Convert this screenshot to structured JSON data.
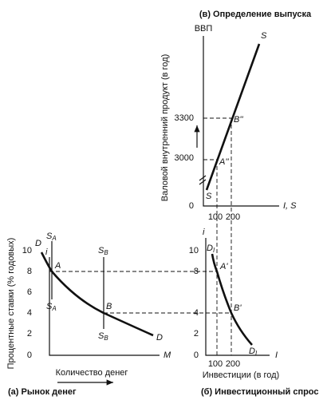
{
  "output_panel": {
    "caption": "(в) Определение выпуска",
    "y_title": "ВВП",
    "y_axis_label": "Валовой внутренний продукт (в год)",
    "x_title": "I, S",
    "yticks": [
      "3300",
      "3000",
      "0"
    ],
    "xticks": [
      "100",
      "200"
    ],
    "curve_labels": [
      "S",
      "S"
    ],
    "points": [
      {
        "main": "A",
        "sup": "''"
      },
      {
        "main": "B",
        "sup": "''"
      }
    ]
  },
  "money_panel": {
    "caption": "(а) Рынок денег",
    "y_title": "i",
    "y_axis_label": "Процентные ставки (% годовых)",
    "x_title": "M",
    "x_axis_label": "Количество денег",
    "yticks": [
      "10",
      "8",
      "6",
      "4",
      "2",
      "0"
    ],
    "supply_labels": [
      {
        "main": "S",
        "sub": "A"
      },
      {
        "main": "S",
        "sub": "A"
      },
      {
        "main": "S",
        "sub": "B"
      },
      {
        "main": "S",
        "sub": "B"
      }
    ],
    "curve_labels": [
      "D",
      "D"
    ],
    "points": [
      "A",
      "B"
    ]
  },
  "investment_panel": {
    "caption": "(б) Инвестиционный спрос",
    "y_title": "i",
    "x_title": "I",
    "x_axis_label": "Инвестиции (в год)",
    "yticks": [
      "10",
      "8",
      "4",
      "2",
      "0"
    ],
    "xticks": [
      "100",
      "200"
    ],
    "curve_labels": [
      {
        "main": "D",
        "sub": "I"
      },
      {
        "main": "D",
        "sub": "I"
      }
    ],
    "points": [
      {
        "main": "A",
        "sup": "'"
      },
      {
        "main": "B",
        "sup": "'"
      }
    ]
  }
}
